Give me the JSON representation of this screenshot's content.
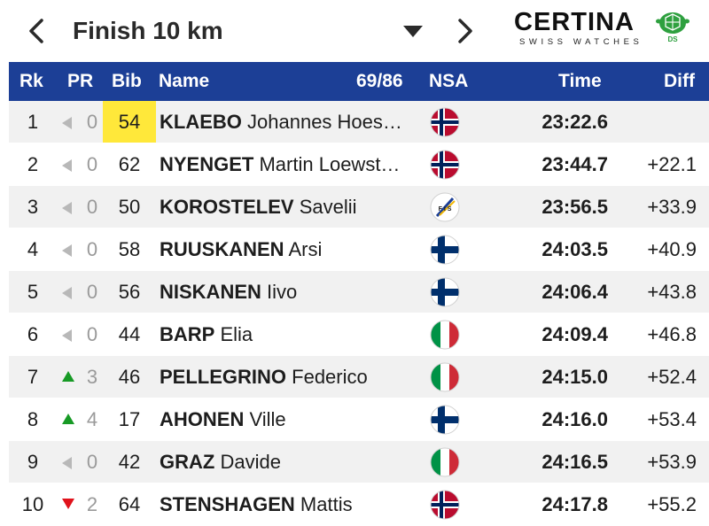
{
  "nav": {
    "title": "Finish 10 km",
    "back_icon": "chevron-left-icon",
    "next_icon": "chevron-right-icon",
    "dropdown_icon": "caret-down-icon"
  },
  "sponsor": {
    "brand": "CERTINA",
    "tagline": "SWISS WATCHES",
    "badge": "DS"
  },
  "table": {
    "headers": {
      "rank": "Rk",
      "pr": "PR",
      "bib": "Bib",
      "name": "Name",
      "count": "69/86",
      "nsa": "NSA",
      "time": "Time",
      "diff": "Diff"
    },
    "header_color": "#1c3f96",
    "rows": [
      {
        "rank": "1",
        "trend": "same",
        "pr": "0",
        "bib": "54",
        "highlight": true,
        "last": "KLAEBO",
        "first": "Johannes Hoes…",
        "nsa": "NOR",
        "time": "23:22.6",
        "diff": ""
      },
      {
        "rank": "2",
        "trend": "same",
        "pr": "0",
        "bib": "62",
        "highlight": false,
        "last": "NYENGET",
        "first": "Martin Loewst…",
        "nsa": "NOR",
        "time": "23:44.7",
        "diff": "+22.1"
      },
      {
        "rank": "3",
        "trend": "same",
        "pr": "0",
        "bib": "50",
        "highlight": false,
        "last": "KOROSTELEV",
        "first": "Savelii",
        "nsa": "FIS",
        "time": "23:56.5",
        "diff": "+33.9"
      },
      {
        "rank": "4",
        "trend": "same",
        "pr": "0",
        "bib": "58",
        "highlight": false,
        "last": "RUUSKANEN",
        "first": "Arsi",
        "nsa": "FIN",
        "time": "24:03.5",
        "diff": "+40.9"
      },
      {
        "rank": "5",
        "trend": "same",
        "pr": "0",
        "bib": "56",
        "highlight": false,
        "last": "NISKANEN",
        "first": "Iivo",
        "nsa": "FIN",
        "time": "24:06.4",
        "diff": "+43.8"
      },
      {
        "rank": "6",
        "trend": "same",
        "pr": "0",
        "bib": "44",
        "highlight": false,
        "last": "BARP",
        "first": "Elia",
        "nsa": "ITA",
        "time": "24:09.4",
        "diff": "+46.8"
      },
      {
        "rank": "7",
        "trend": "up",
        "pr": "3",
        "bib": "46",
        "highlight": false,
        "last": "PELLEGRINO",
        "first": "Federico",
        "nsa": "ITA",
        "time": "24:15.0",
        "diff": "+52.4"
      },
      {
        "rank": "8",
        "trend": "up",
        "pr": "4",
        "bib": "17",
        "highlight": false,
        "last": "AHONEN",
        "first": "Ville",
        "nsa": "FIN",
        "time": "24:16.0",
        "diff": "+53.4"
      },
      {
        "rank": "9",
        "trend": "same",
        "pr": "0",
        "bib": "42",
        "highlight": false,
        "last": "GRAZ",
        "first": "Davide",
        "nsa": "ITA",
        "time": "24:16.5",
        "diff": "+53.9"
      },
      {
        "rank": "10",
        "trend": "down",
        "pr": "2",
        "bib": "64",
        "highlight": false,
        "last": "STENSHAGEN",
        "first": "Mattis",
        "nsa": "NOR",
        "time": "24:17.8",
        "diff": "+55.2"
      }
    ]
  }
}
